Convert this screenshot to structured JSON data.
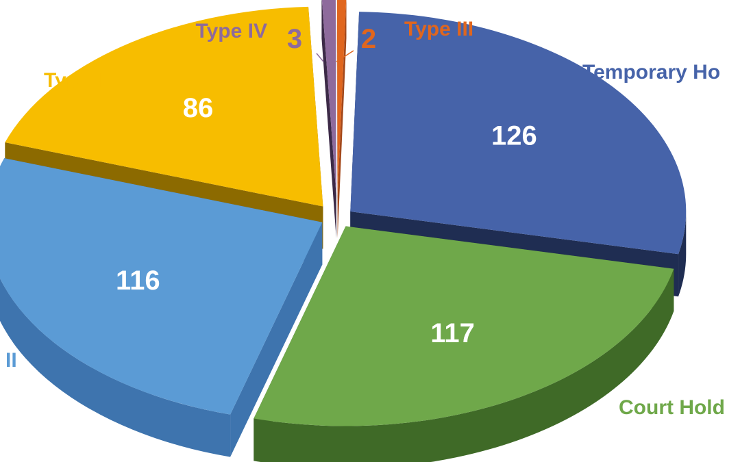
{
  "chart_data": {
    "type": "pie",
    "title": "",
    "style": "3d-exploded",
    "slices": [
      {
        "name": "Temporary Ho",
        "value": 126,
        "color": "#4663A9",
        "side_color": "#1F2D52",
        "label_color": "#FFFFFF",
        "name_color": "#4663A9"
      },
      {
        "name": "Court Hold",
        "value": 117,
        "color": "#6FA84A",
        "side_color": "#3F6A27",
        "label_color": "#FFFFFF",
        "name_color": "#6FA84A"
      },
      {
        "name": "II",
        "value": 116,
        "color": "#5B9BD5",
        "side_color": "#3E74AE",
        "label_color": "#FFFFFF",
        "name_color": "#5B9BD5"
      },
      {
        "name": "Type I",
        "value": 86,
        "color": "#F7BD00",
        "side_color": "#8C6A00",
        "label_color": "#FFFFFF",
        "name_color": "#F7BD00"
      },
      {
        "name": "Type IV",
        "value": 3,
        "color": "#8E6A9C",
        "side_color": "#3C2A47",
        "label_color": "#8E6A9C",
        "name_color": "#8E6A9C"
      },
      {
        "name": "Type III",
        "value": 2,
        "color": "#E0661E",
        "side_color": "#A3481A",
        "label_color": "#E0661E",
        "name_color": "#E0661E"
      }
    ]
  }
}
